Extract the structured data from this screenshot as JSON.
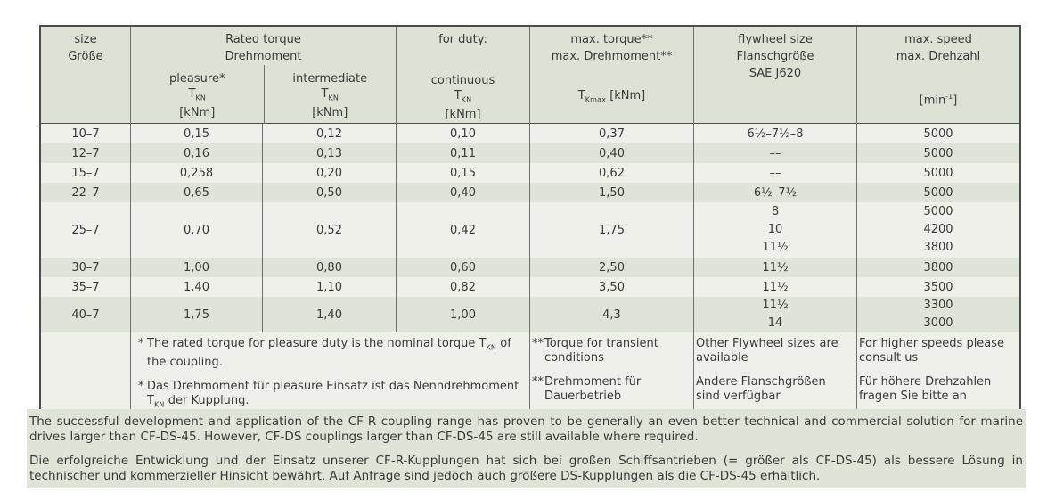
{
  "colors": {
    "header_bg": "#dce2d4",
    "row_light": "#eef0e9",
    "row_dark": "#dfe4d8",
    "note_bg": "#dee4d6",
    "border": "#4b4b4b",
    "text": "#3a3a3a"
  },
  "table": {
    "header": {
      "size": [
        "size",
        "Größe"
      ],
      "rated_torque": [
        "Rated torque",
        "Drehmoment"
      ],
      "pleasure": {
        "label": "pleasure*",
        "symbol": "T",
        "symbol_sub": "KN",
        "unit": "[kNm]"
      },
      "intermediate": {
        "label": "intermediate",
        "symbol": "T",
        "symbol_sub": "KN",
        "unit": "[kNm]"
      },
      "for_duty": "for duty:",
      "continuous": {
        "label": "continuous",
        "symbol": "T",
        "symbol_sub": "KN",
        "unit": "[kNm]"
      },
      "max_torque": {
        "lines": [
          "max. torque**",
          "max. Drehmoment**"
        ],
        "symbol": "T",
        "symbol_sub": "Kmax",
        "symbol_unit": "[kNm]"
      },
      "flywheel": {
        "lines": [
          "flywheel size",
          "Flanschgröße",
          "SAE J620"
        ]
      },
      "max_speed": {
        "lines": [
          "max. speed",
          "max. Drehzahl"
        ],
        "unit_pre": "[min",
        "unit_sup": "-1",
        "unit_post": "]"
      }
    },
    "rows": [
      {
        "size": "10–7",
        "pleasure": "0,15",
        "intermediate": "0,12",
        "continuous": "0,10",
        "max_torque": "0,37",
        "flywheel": [
          "6½–7½–8"
        ],
        "speed": [
          "5000"
        ]
      },
      {
        "size": "12–7",
        "pleasure": "0,16",
        "intermediate": "0,13",
        "continuous": "0,11",
        "max_torque": "0,40",
        "flywheel": [
          "––"
        ],
        "speed": [
          "5000"
        ]
      },
      {
        "size": "15–7",
        "pleasure": "0,258",
        "intermediate": "0,20",
        "continuous": "0,15",
        "max_torque": "0,62",
        "flywheel": [
          "––"
        ],
        "speed": [
          "5000"
        ]
      },
      {
        "size": "22–7",
        "pleasure": "0,65",
        "intermediate": "0,50",
        "continuous": "0,40",
        "max_torque": "1,50",
        "flywheel": [
          "6½–7½"
        ],
        "speed": [
          "5000"
        ]
      },
      {
        "size": "25–7",
        "pleasure": "0,70",
        "intermediate": "0,52",
        "continuous": "0,42",
        "max_torque": "1,75",
        "flywheel": [
          "8",
          "10",
          "11½"
        ],
        "speed": [
          "5000",
          "4200",
          "3800"
        ]
      },
      {
        "size": "30–7",
        "pleasure": "1,00",
        "intermediate": "0,80",
        "continuous": "0,60",
        "max_torque": "2,50",
        "flywheel": [
          "11½"
        ],
        "speed": [
          "3800"
        ]
      },
      {
        "size": "35–7",
        "pleasure": "1,40",
        "intermediate": "1,10",
        "continuous": "0,82",
        "max_torque": "3,50",
        "flywheel": [
          "11½"
        ],
        "speed": [
          "3500"
        ]
      },
      {
        "size": "40–7",
        "pleasure": "1,75",
        "intermediate": "1,40",
        "continuous": "1,00",
        "max_torque": "4,3",
        "flywheel": [
          "11½",
          "14"
        ],
        "speed": [
          "3300",
          "3000"
        ]
      }
    ],
    "footnotes": {
      "star1": {
        "marker": "*",
        "pre": "The rated torque for pleasure duty is the nominal torque T",
        "sub": "KN",
        "post": " of the coupling."
      },
      "star2": {
        "marker": "*",
        "pre": "Das Drehmoment für pleasure Einsatz ist das Nenndrehmoment T",
        "sub": "KN",
        "post": " der Kupplung."
      },
      "max_torque_en": {
        "marker": "**",
        "text": "Torque for transient conditions"
      },
      "max_torque_de": {
        "marker": "**",
        "text": "Drehmoment für Dauerbetrieb"
      },
      "flywheel_en": "Other Flywheel sizes are available",
      "flywheel_de": "Andere Flanschgrößen sind verfügbar",
      "speed_en": "For higher speeds please consult us",
      "speed_de": "Für höhere Drehzahlen fragen Sie bitte an"
    }
  },
  "notes": {
    "english": "The successful development and application of the CF-R coupling range has proven to be generally an even better technical and commercial solution for marine drives larger than CF-DS-45. However, CF-DS couplings larger than CF-DS-45 are still available where required.",
    "german": "Die erfolgreiche Entwicklung und der Einsatz unserer CF-R-Kupplungen hat sich bei großen Schiffsantrieben (= größer als CF-DS-45) als bessere Lösung in technischer und kommerzieller Hinsicht bewährt. Auf Anfrage sind jedoch auch größere DS-Kupplungen als die CF-DS-45 erhältlich."
  }
}
